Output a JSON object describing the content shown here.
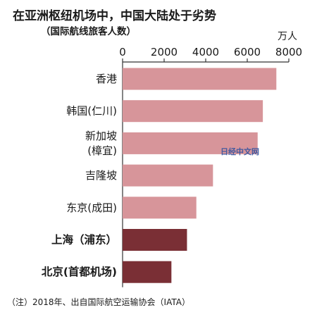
{
  "chart_data": {
    "type": "bar",
    "orientation": "horizontal",
    "title": "在亚洲枢纽机场中，中国大陆处于劣势",
    "subtitle": "（国际航线旅客人数）",
    "unit": "万人",
    "axis_position": "top",
    "xlim": [
      0,
      8000
    ],
    "ticks": [
      0,
      2000,
      4000,
      6000,
      8000
    ],
    "grid": false,
    "categories": [
      {
        "lines": [
          "香港"
        ],
        "bold": false
      },
      {
        "lines": [
          "韩国(仁川)"
        ],
        "bold": false
      },
      {
        "lines": [
          "新加坡",
          "(樟宜)"
        ],
        "bold": false
      },
      {
        "lines": [
          "吉隆坡"
        ],
        "bold": false
      },
      {
        "lines": [
          "东京(成田)"
        ],
        "bold": false
      },
      {
        "lines": [
          "上海（浦东）"
        ],
        "bold": true
      },
      {
        "lines": [
          "北京(首都机场)"
        ],
        "bold": true
      }
    ],
    "values": [
      7400,
      6750,
      6500,
      4350,
      3550,
      3100,
      2350
    ],
    "colors": [
      "#d7959a",
      "#d7959a",
      "#d7959a",
      "#d7959a",
      "#d7959a",
      "#7a2f35",
      "#7a2f35"
    ],
    "note": "（注）2018年、出自国际航空运输协会（IATA）"
  },
  "watermark": "日经中文网"
}
